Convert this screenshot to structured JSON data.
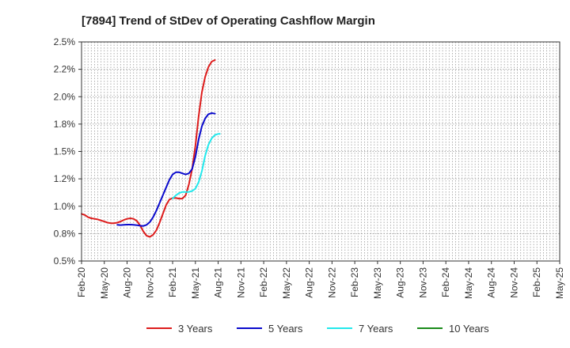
{
  "chart_data": {
    "type": "line",
    "title": "[7894]  Trend of StDev of Operating Cashflow Margin",
    "xlabel": "",
    "ylabel": "",
    "x_ticks": [
      "Feb-20",
      "May-20",
      "Aug-20",
      "Nov-20",
      "Feb-21",
      "May-21",
      "Aug-21",
      "Nov-21",
      "Feb-22",
      "May-22",
      "Aug-22",
      "Nov-22",
      "Feb-23",
      "May-23",
      "Aug-23",
      "Nov-23",
      "Feb-24",
      "May-24",
      "Aug-24",
      "Nov-24",
      "Feb-25",
      "May-25"
    ],
    "y_ticks": [
      "0.5%",
      "0.8%",
      "1.0%",
      "1.2%",
      "1.5%",
      "1.8%",
      "2.0%",
      "2.2%",
      "2.5%"
    ],
    "ylim": [
      0.5,
      2.5
    ],
    "grid": true,
    "legend_position": "bottom",
    "series": [
      {
        "name": "3 Years",
        "color": "#dd1c1c",
        "points": [
          [
            0,
            0.93
          ],
          [
            1,
            0.92
          ],
          [
            2,
            0.9
          ],
          [
            3,
            0.89
          ],
          [
            4,
            0.885
          ],
          [
            5,
            0.88
          ],
          [
            6,
            0.87
          ],
          [
            7,
            0.86
          ],
          [
            8,
            0.85
          ],
          [
            9,
            0.845
          ],
          [
            10,
            0.845
          ],
          [
            11,
            0.85
          ],
          [
            12,
            0.86
          ],
          [
            13,
            0.875
          ],
          [
            14,
            0.885
          ],
          [
            15,
            0.89
          ],
          [
            16,
            0.885
          ],
          [
            17,
            0.865
          ],
          [
            18,
            0.825
          ],
          [
            19,
            0.77
          ],
          [
            20,
            0.73
          ],
          [
            21,
            0.72
          ],
          [
            22,
            0.74
          ],
          [
            23,
            0.78
          ],
          [
            24,
            0.85
          ],
          [
            25,
            0.93
          ],
          [
            26,
            1.01
          ],
          [
            27,
            1.06
          ],
          [
            28,
            1.075
          ],
          [
            29,
            1.075
          ],
          [
            30,
            1.07
          ],
          [
            31,
            1.07
          ],
          [
            32,
            1.1
          ],
          [
            33,
            1.2
          ],
          [
            34,
            1.34
          ],
          [
            35,
            1.55
          ],
          [
            36,
            1.82
          ],
          [
            37,
            2.04
          ],
          [
            38,
            2.18
          ],
          [
            39,
            2.27
          ],
          [
            40,
            2.32
          ],
          [
            41,
            2.335
          ]
        ]
      },
      {
        "name": "5 Years",
        "color": "#0a0acc",
        "points": [
          [
            11,
            0.83
          ],
          [
            12,
            0.828
          ],
          [
            13,
            0.83
          ],
          [
            14,
            0.832
          ],
          [
            15,
            0.832
          ],
          [
            16,
            0.83
          ],
          [
            17,
            0.827
          ],
          [
            18,
            0.822
          ],
          [
            19,
            0.82
          ],
          [
            20,
            0.83
          ],
          [
            21,
            0.855
          ],
          [
            22,
            0.9
          ],
          [
            23,
            0.96
          ],
          [
            24,
            1.03
          ],
          [
            25,
            1.1
          ],
          [
            26,
            1.17
          ],
          [
            27,
            1.24
          ],
          [
            28,
            1.29
          ],
          [
            29,
            1.31
          ],
          [
            30,
            1.31
          ],
          [
            31,
            1.3
          ],
          [
            32,
            1.29
          ],
          [
            33,
            1.3
          ],
          [
            34,
            1.34
          ],
          [
            35,
            1.45
          ],
          [
            36,
            1.61
          ],
          [
            37,
            1.73
          ],
          [
            38,
            1.8
          ],
          [
            39,
            1.84
          ],
          [
            40,
            1.85
          ],
          [
            41,
            1.845
          ]
        ]
      },
      {
        "name": "7 Years",
        "color": "#22e8ec",
        "points": [
          [
            28,
            1.07
          ],
          [
            29,
            1.1
          ],
          [
            30,
            1.12
          ],
          [
            31,
            1.13
          ],
          [
            32,
            1.13
          ],
          [
            33,
            1.13
          ],
          [
            34,
            1.14
          ],
          [
            35,
            1.16
          ],
          [
            36,
            1.22
          ],
          [
            37,
            1.32
          ],
          [
            38,
            1.46
          ],
          [
            39,
            1.56
          ],
          [
            40,
            1.62
          ],
          [
            41,
            1.65
          ],
          [
            42,
            1.66
          ],
          [
            42.5,
            1.66
          ]
        ]
      },
      {
        "name": "10 Years",
        "color": "#1a8a1a",
        "points": []
      }
    ]
  }
}
